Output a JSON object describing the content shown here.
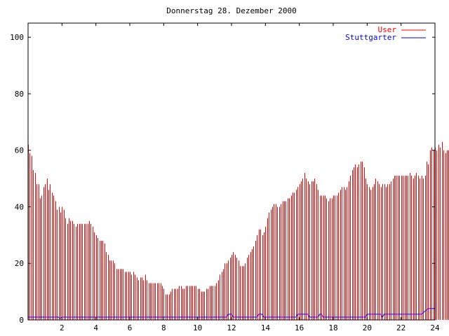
{
  "chart_data": {
    "type": "bar",
    "title": "Donnerstag 28. Dezember 2000",
    "xlabel": "",
    "ylabel": "",
    "xlim": [
      0,
      24
    ],
    "ylim": [
      0,
      105
    ],
    "x_ticks": [
      2,
      4,
      6,
      8,
      10,
      12,
      14,
      16,
      18,
      20,
      22,
      24
    ],
    "y_ticks": [
      0,
      20,
      40,
      60,
      80,
      100
    ],
    "grid": false,
    "legend_position": "top-right",
    "interval_hours": 0.1,
    "series": [
      {
        "name": "User",
        "color": "#ff0000",
        "style": "impulses",
        "values": [
          62,
          59,
          58,
          53,
          52,
          48,
          48,
          43,
          44,
          47,
          48,
          50,
          46,
          48,
          45,
          44,
          42,
          39,
          40,
          38,
          40,
          39,
          36,
          34,
          36,
          35,
          35,
          34,
          33,
          34,
          34,
          34,
          34,
          34,
          34,
          34,
          35,
          34,
          33,
          31,
          30,
          29,
          28,
          28,
          28,
          27,
          24,
          23,
          21,
          21,
          21,
          20,
          18,
          18,
          18,
          18,
          18,
          17,
          17,
          17,
          17,
          16,
          17,
          16,
          15,
          14,
          15,
          15,
          14,
          16,
          14,
          13,
          13,
          13,
          13,
          13,
          13,
          13,
          13,
          12,
          11,
          9,
          9,
          9,
          10,
          11,
          11,
          11,
          11,
          12,
          12,
          11,
          11,
          12,
          12,
          12,
          12,
          12,
          12,
          12,
          11,
          11,
          10,
          10,
          10,
          11,
          11,
          12,
          12,
          12,
          12,
          13,
          14,
          16,
          17,
          18,
          20,
          20,
          21,
          22,
          23,
          24,
          23,
          22,
          21,
          19,
          19,
          19,
          20,
          22,
          23,
          24,
          25,
          26,
          28,
          30,
          32,
          32,
          30,
          31,
          33,
          36,
          38,
          39,
          40,
          41,
          41,
          40,
          40,
          41,
          42,
          42,
          42,
          43,
          43,
          44,
          45,
          45,
          46,
          47,
          48,
          49,
          50,
          52,
          50,
          49,
          48,
          49,
          49,
          50,
          48,
          46,
          44,
          44,
          44,
          44,
          43,
          42,
          43,
          43,
          44,
          44,
          44,
          45,
          46,
          47,
          47,
          46,
          47,
          49,
          51,
          53,
          54,
          55,
          54,
          55,
          56,
          56,
          54,
          50,
          48,
          47,
          46,
          47,
          48,
          50,
          49,
          48,
          47,
          48,
          48,
          47,
          48,
          48,
          49,
          50,
          51,
          51,
          51,
          51,
          51,
          51,
          51,
          51,
          51,
          52,
          51,
          50,
          51,
          52,
          51,
          50,
          51,
          50,
          51,
          56,
          55,
          60,
          61,
          60,
          61,
          60,
          62,
          61,
          63,
          60,
          59,
          60,
          60,
          60,
          60,
          61,
          59,
          60,
          62,
          65,
          63,
          61,
          61,
          55,
          58,
          61,
          60,
          59,
          61,
          59,
          60,
          59,
          58,
          57
        ]
      },
      {
        "name": "Stuttgarter",
        "color": "#0000ff",
        "style": "line",
        "points": [
          [
            0,
            1
          ],
          [
            1.8,
            1
          ],
          [
            1.85,
            0.5
          ],
          [
            2.0,
            1
          ],
          [
            11.7,
            1
          ],
          [
            11.8,
            2
          ],
          [
            12.0,
            2
          ],
          [
            12.1,
            1
          ],
          [
            13.5,
            1
          ],
          [
            13.6,
            2
          ],
          [
            13.8,
            2
          ],
          [
            13.9,
            1
          ],
          [
            15.8,
            1
          ],
          [
            15.9,
            2
          ],
          [
            16.5,
            2
          ],
          [
            16.6,
            1
          ],
          [
            17.1,
            1
          ],
          [
            17.2,
            2
          ],
          [
            17.3,
            2
          ],
          [
            17.4,
            1
          ],
          [
            19.9,
            1
          ],
          [
            20.0,
            2
          ],
          [
            20.8,
            2
          ],
          [
            20.9,
            1
          ],
          [
            21.0,
            2
          ],
          [
            23.2,
            2
          ],
          [
            23.4,
            3
          ],
          [
            23.6,
            4
          ],
          [
            24,
            4
          ]
        ]
      }
    ]
  }
}
